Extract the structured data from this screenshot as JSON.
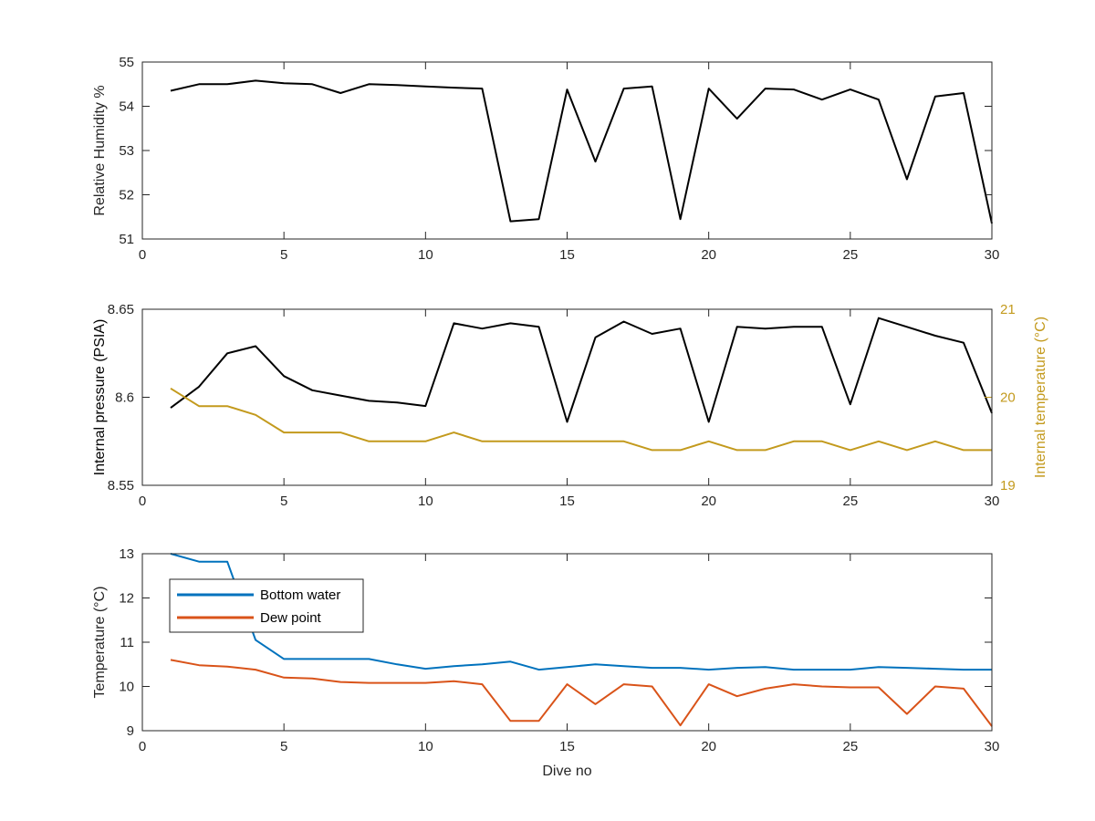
{
  "chart_data": [
    {
      "type": "line",
      "xlabel": "",
      "ylabel": "Relative Humidity %",
      "xlim": [
        0,
        30
      ],
      "ylim": [
        51,
        55
      ],
      "xticks": [
        0,
        5,
        10,
        15,
        20,
        25,
        30
      ],
      "yticks": [
        51,
        52,
        53,
        54,
        55
      ],
      "grid": false,
      "series": [
        {
          "color": "#000000",
          "x": [
            1,
            2,
            3,
            4,
            5,
            6,
            7,
            8,
            9,
            10,
            11,
            12,
            13,
            14,
            15,
            16,
            17,
            18,
            19,
            20,
            21,
            22,
            23,
            24,
            25,
            26,
            27,
            28,
            29,
            30
          ],
          "y": [
            54.35,
            54.5,
            54.5,
            54.58,
            54.52,
            54.5,
            54.3,
            54.5,
            54.48,
            54.45,
            54.42,
            54.4,
            51.4,
            51.45,
            54.38,
            52.75,
            54.4,
            54.45,
            51.45,
            54.4,
            53.72,
            54.4,
            54.38,
            54.15,
            54.38,
            54.15,
            52.35,
            54.22,
            54.3,
            51.35
          ]
        }
      ]
    },
    {
      "type": "line",
      "xlabel": "",
      "ylabel": "Internal pressure (PSIA)",
      "ylabel_right": "Internal temperature (°C)",
      "xlim": [
        0,
        30
      ],
      "ylim": [
        8.55,
        8.65
      ],
      "ylim_right": [
        19,
        21
      ],
      "xticks": [
        0,
        5,
        10,
        15,
        20,
        25,
        30
      ],
      "yticks": [
        8.55,
        8.6,
        8.65
      ],
      "yticks_right": [
        19,
        20,
        21
      ],
      "ytick_labels": [
        "8.55",
        "8.6",
        "8.65"
      ],
      "grid": false,
      "right_axis_color": "#c39a1d",
      "series": [
        {
          "axis": "left",
          "color": "#000000",
          "x": [
            1,
            2,
            3,
            4,
            5,
            6,
            7,
            8,
            9,
            10,
            11,
            12,
            13,
            14,
            15,
            16,
            17,
            18,
            19,
            20,
            21,
            22,
            23,
            24,
            25,
            26,
            27,
            28,
            29,
            30
          ],
          "y": [
            8.594,
            8.606,
            8.625,
            8.629,
            8.612,
            8.604,
            8.601,
            8.598,
            8.597,
            8.595,
            8.642,
            8.639,
            8.642,
            8.64,
            8.586,
            8.634,
            8.643,
            8.636,
            8.639,
            8.586,
            8.64,
            8.639,
            8.64,
            8.64,
            8.596,
            8.645,
            8.64,
            8.635,
            8.631,
            8.591
          ]
        },
        {
          "axis": "right",
          "color": "#c39a1d",
          "x": [
            1,
            2,
            3,
            4,
            5,
            6,
            7,
            8,
            9,
            10,
            11,
            12,
            13,
            14,
            15,
            16,
            17,
            18,
            19,
            20,
            21,
            22,
            23,
            24,
            25,
            26,
            27,
            28,
            29,
            30
          ],
          "y": [
            20.1,
            19.9,
            19.9,
            19.8,
            19.6,
            19.6,
            19.6,
            19.5,
            19.5,
            19.5,
            19.6,
            19.5,
            19.5,
            19.5,
            19.5,
            19.5,
            19.5,
            19.4,
            19.4,
            19.5,
            19.4,
            19.4,
            19.5,
            19.5,
            19.4,
            19.5,
            19.4,
            19.5,
            19.4,
            19.4
          ]
        }
      ]
    },
    {
      "type": "line",
      "xlabel": "Dive no",
      "ylabel": "Temperature (°C)",
      "xlim": [
        0,
        30
      ],
      "ylim": [
        9,
        13
      ],
      "xticks": [
        0,
        5,
        10,
        15,
        20,
        25,
        30
      ],
      "yticks": [
        9,
        10,
        11,
        12,
        13
      ],
      "grid": false,
      "legend_position": "top-left",
      "series": [
        {
          "name": "Bottom water",
          "color": "#0072bd",
          "x": [
            1,
            2,
            3,
            4,
            5,
            6,
            7,
            8,
            9,
            10,
            11,
            12,
            13,
            14,
            15,
            16,
            17,
            18,
            19,
            20,
            21,
            22,
            23,
            24,
            25,
            26,
            27,
            28,
            29,
            30
          ],
          "y": [
            13.0,
            12.82,
            12.82,
            11.05,
            10.62,
            10.62,
            10.62,
            10.62,
            10.5,
            10.4,
            10.46,
            10.5,
            10.56,
            10.38,
            10.44,
            10.5,
            10.46,
            10.42,
            10.42,
            10.38,
            10.42,
            10.44,
            10.38,
            10.38,
            10.38,
            10.44,
            10.42,
            10.4,
            10.38,
            10.38
          ]
        },
        {
          "name": "Dew point",
          "color": "#d95319",
          "x": [
            1,
            2,
            3,
            4,
            5,
            6,
            7,
            8,
            9,
            10,
            11,
            12,
            13,
            14,
            15,
            16,
            17,
            18,
            19,
            20,
            21,
            22,
            23,
            24,
            25,
            26,
            27,
            28,
            29,
            30
          ],
          "y": [
            10.6,
            10.48,
            10.45,
            10.38,
            10.2,
            10.18,
            10.1,
            10.08,
            10.08,
            10.08,
            10.12,
            10.05,
            9.22,
            9.22,
            10.05,
            9.6,
            10.05,
            10.0,
            9.12,
            10.05,
            9.78,
            9.95,
            10.05,
            10.0,
            9.98,
            9.98,
            9.38,
            10.0,
            9.95,
            9.1
          ]
        }
      ]
    }
  ]
}
